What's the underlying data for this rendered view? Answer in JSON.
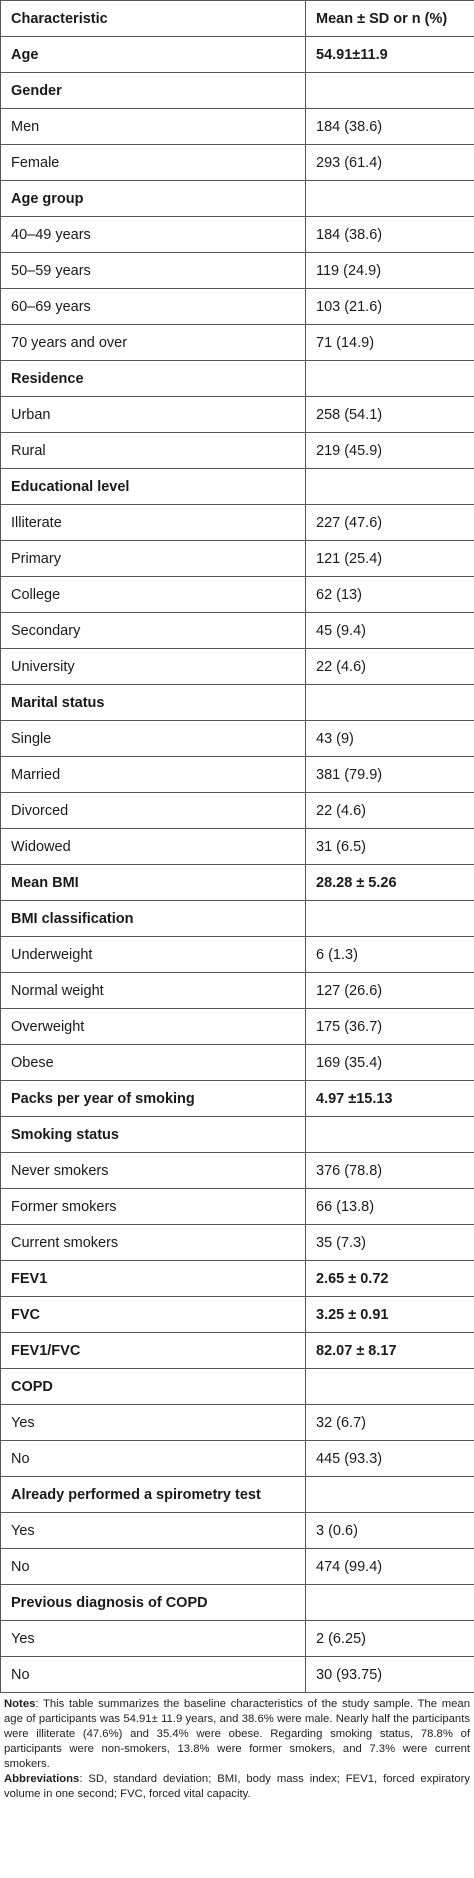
{
  "table": {
    "headers": [
      "Characteristic",
      "Mean ± SD or n (%)"
    ],
    "rows": [
      {
        "label": "Age",
        "value": "54.91±11.9",
        "bold": true
      },
      {
        "label": "Gender",
        "value": "",
        "bold": true
      },
      {
        "label": "Men",
        "value": "184 (38.6)",
        "bold": false
      },
      {
        "label": "Female",
        "value": "293 (61.4)",
        "bold": false
      },
      {
        "label": "Age group",
        "value": "",
        "bold": true
      },
      {
        "label": "40–49 years",
        "value": "184 (38.6)",
        "bold": false
      },
      {
        "label": "50–59 years",
        "value": "119 (24.9)",
        "bold": false
      },
      {
        "label": "60–69 years",
        "value": "103 (21.6)",
        "bold": false
      },
      {
        "label": "70 years and over",
        "value": "71 (14.9)",
        "bold": false
      },
      {
        "label": "Residence",
        "value": "",
        "bold": true
      },
      {
        "label": "Urban",
        "value": "258 (54.1)",
        "bold": false
      },
      {
        "label": "Rural",
        "value": "219 (45.9)",
        "bold": false
      },
      {
        "label": "Educational level",
        "value": "",
        "bold": true
      },
      {
        "label": "Illiterate",
        "value": "227 (47.6)",
        "bold": false
      },
      {
        "label": "Primary",
        "value": "121 (25.4)",
        "bold": false
      },
      {
        "label": "College",
        "value": "62 (13)",
        "bold": false
      },
      {
        "label": "Secondary",
        "value": "45 (9.4)",
        "bold": false
      },
      {
        "label": "University",
        "value": "22 (4.6)",
        "bold": false
      },
      {
        "label": "Marital status",
        "value": "",
        "bold": true
      },
      {
        "label": "Single",
        "value": "43 (9)",
        "bold": false
      },
      {
        "label": "Married",
        "value": "381 (79.9)",
        "bold": false
      },
      {
        "label": "Divorced",
        "value": "22 (4.6)",
        "bold": false
      },
      {
        "label": "Widowed",
        "value": "31 (6.5)",
        "bold": false
      },
      {
        "label": "Mean BMI",
        "value": "28.28 ± 5.26",
        "bold": true
      },
      {
        "label": "BMI classification",
        "value": "",
        "bold": true
      },
      {
        "label": "Underweight",
        "value": "6 (1.3)",
        "bold": false
      },
      {
        "label": "Normal weight",
        "value": "127 (26.6)",
        "bold": false
      },
      {
        "label": "Overweight",
        "value": "175 (36.7)",
        "bold": false
      },
      {
        "label": "Obese",
        "value": "169 (35.4)",
        "bold": false
      },
      {
        "label": "Packs per year of smoking",
        "value": "4.97 ±15.13",
        "bold": true
      },
      {
        "label": "Smoking status",
        "value": "",
        "bold": true
      },
      {
        "label": "Never smokers",
        "value": "376 (78.8)",
        "bold": false
      },
      {
        "label": "Former smokers",
        "value": "66 (13.8)",
        "bold": false
      },
      {
        "label": "Current smokers",
        "value": "35 (7.3)",
        "bold": false
      },
      {
        "label": "FEV1",
        "value": "2.65 ± 0.72",
        "bold": true
      },
      {
        "label": "FVC",
        "value": "3.25 ± 0.91",
        "bold": true
      },
      {
        "label": "FEV1/FVC",
        "value": "82.07 ± 8.17",
        "bold": true
      },
      {
        "label": "COPD",
        "value": "",
        "bold": true
      },
      {
        "label": "Yes",
        "value": "32 (6.7)",
        "bold": false
      },
      {
        "label": "No",
        "value": "445 (93.3)",
        "bold": false
      },
      {
        "label": "Already performed a spirometry test",
        "value": "",
        "bold": true
      },
      {
        "label": "Yes",
        "value": "3 (0.6)",
        "bold": false
      },
      {
        "label": "No",
        "value": "474 (99.4)",
        "bold": false
      },
      {
        "label": "Previous diagnosis of COPD",
        "value": "",
        "bold": true
      },
      {
        "label": "Yes",
        "value": "2 (6.25)",
        "bold": false
      },
      {
        "label": "No",
        "value": "30 (93.75)",
        "bold": false
      }
    ]
  },
  "notes": {
    "notes_label": "Notes",
    "notes_text": ": This table summarizes the baseline characteristics of the study sample. The mean age of participants was 54.91± 11.9 years, and 38.6% were male. Nearly half the participants were illiterate (47.6%) and 35.4% were obese. Regarding smoking status, 78.8% of participants were non-smokers, 13.8% were former smokers, and 7.3% were current smokers.",
    "abbrev_label": "Abbreviations",
    "abbrev_text": ": SD, standard deviation; BMI, body mass index; FEV1, forced expiratory volume in one second; FVC, forced vital capacity."
  }
}
